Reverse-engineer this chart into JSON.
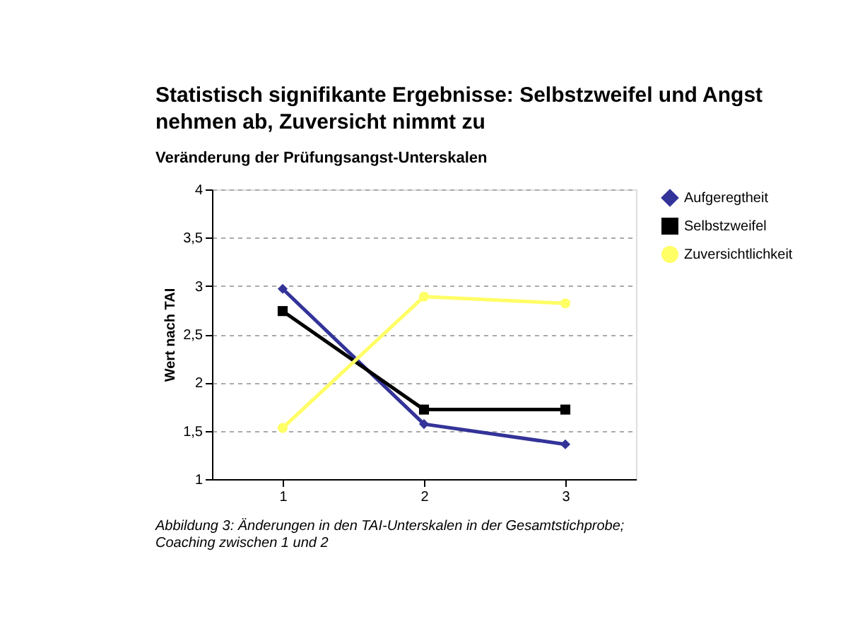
{
  "chart_data": {
    "type": "line",
    "title": "Statistisch signifikante Ergebnisse: Selbstzweifel und Angst nehmen ab, Zuversicht nimmt zu",
    "subtitle": "Veränderung der Prüfungsangst-Unterskalen",
    "ylabel": "Wert nach TAI",
    "categories": [
      "1",
      "2",
      "3"
    ],
    "series": [
      {
        "name": "Aufgeregtheit",
        "color": "#333399",
        "marker": "diamond",
        "values": [
          2.97,
          1.57,
          1.36
        ]
      },
      {
        "name": "Selbstzweifel",
        "color": "#000000",
        "marker": "square",
        "values": [
          2.74,
          1.72,
          1.72
        ]
      },
      {
        "name": "Zuversichtlichkeit",
        "color": "#ffff66",
        "marker": "circle",
        "values": [
          1.53,
          2.89,
          2.82
        ]
      }
    ],
    "ylim": [
      1,
      4
    ],
    "yticks": [
      1,
      {
        "value": 1.5,
        "label": "1,5"
      },
      2,
      {
        "value": 2.5,
        "label": "2,5"
      },
      3,
      {
        "value": 3.5,
        "label": "3,5"
      },
      4
    ],
    "grid": "y",
    "legend": "right",
    "line_style": "solid",
    "annotations": [
      "Abbildung 3: Änderungen in den TAI-Unterskalen in der Gesamtstichprobe; Coaching zwischen 1 und 2"
    ]
  }
}
